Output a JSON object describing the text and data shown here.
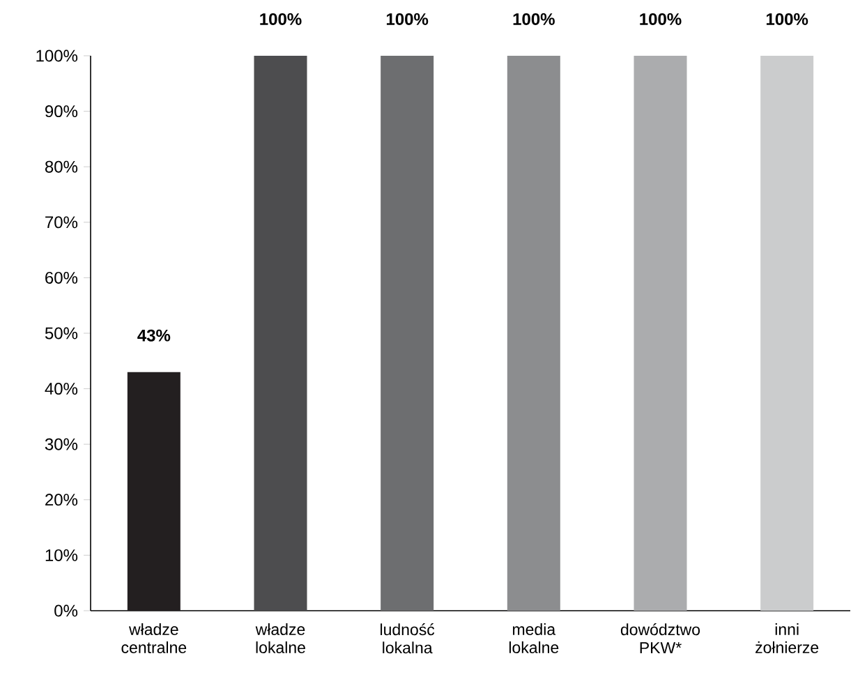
{
  "chart_data": {
    "type": "bar",
    "categories": [
      "władze centralne",
      "władze lokalne",
      "ludność lokalna",
      "media lokalne",
      "dowództwo PKW*",
      "inni żołnierze"
    ],
    "values": [
      43,
      100,
      100,
      100,
      100,
      100
    ],
    "colors": [
      "#231f20",
      "#4d4d4f",
      "#6d6e70",
      "#8c8d8f",
      "#abacae",
      "#cbcccd"
    ],
    "value_labels": [
      "43%",
      "100%",
      "100%",
      "100%",
      "100%",
      "100%"
    ],
    "ylim": [
      0,
      100
    ],
    "yticks": [
      {
        "value": 0,
        "label": "0%"
      },
      {
        "value": 10,
        "label": "10%"
      },
      {
        "value": 20,
        "label": "20%"
      },
      {
        "value": 30,
        "label": "30%"
      },
      {
        "value": 40,
        "label": "40%"
      },
      {
        "value": 50,
        "label": "50%"
      },
      {
        "value": 60,
        "label": "60%"
      },
      {
        "value": 70,
        "label": "70%"
      },
      {
        "value": 80,
        "label": "80%"
      },
      {
        "value": 90,
        "label": "90%"
      },
      {
        "value": 100,
        "label": "100%"
      }
    ],
    "grid": false
  }
}
